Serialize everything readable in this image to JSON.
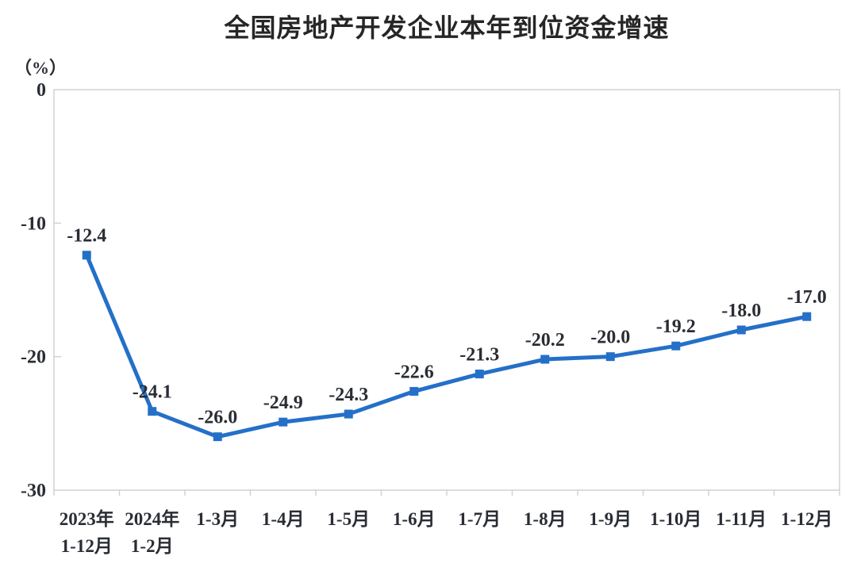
{
  "chart_data": {
    "type": "line",
    "title": "全国房地产开发企业本年到位资金增速",
    "unit_label": "（%）",
    "categories": [
      [
        "2023年",
        "1-12月"
      ],
      [
        "2024年",
        "1-2月"
      ],
      [
        "1-3月"
      ],
      [
        "1-4月"
      ],
      [
        "1-5月"
      ],
      [
        "1-6月"
      ],
      [
        "1-7月"
      ],
      [
        "1-8月"
      ],
      [
        "1-9月"
      ],
      [
        "1-10月"
      ],
      [
        "1-11月"
      ],
      [
        "1-12月"
      ]
    ],
    "values": [
      -12.4,
      -24.1,
      -26.0,
      -24.9,
      -24.3,
      -22.6,
      -21.3,
      -20.2,
      -20.0,
      -19.2,
      -18.0,
      -17.0
    ],
    "value_labels": [
      "-12.4",
      "-24.1",
      "-26.0",
      "-24.9",
      "-24.3",
      "-22.6",
      "-21.3",
      "-20.2",
      "-20.0",
      "-19.2",
      "-18.0",
      "-17.0"
    ],
    "ylim": [
      -30,
      0
    ],
    "yticks": [
      0,
      -10,
      -20,
      -30
    ],
    "ytick_labels": [
      "0",
      "-10",
      "-20",
      "-30"
    ],
    "grid": false,
    "legend": "none",
    "marker": "square",
    "line_color": "#2470c8",
    "axis_color": "#d2d2d2",
    "label_color": "#2a2d34",
    "title_color": "#262626",
    "background_color": "#ffffff"
  }
}
